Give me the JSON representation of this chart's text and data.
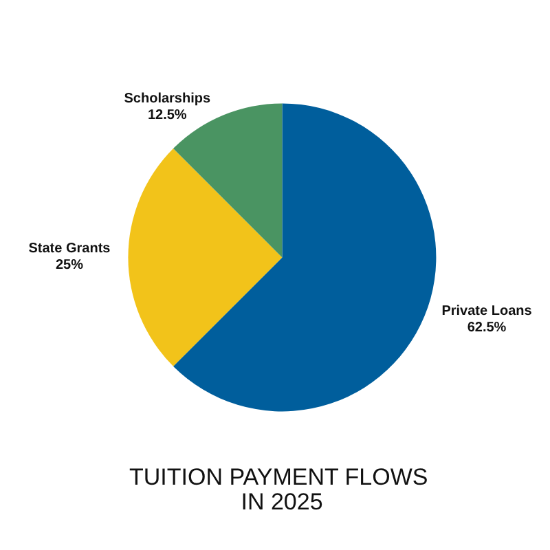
{
  "chart_data": {
    "type": "pie",
    "title": "TUITION PAYMENT FLOWS IN 2025",
    "categories": [
      "Private Loans",
      "State Grants",
      "Scholarships"
    ],
    "values": [
      62.5,
      25,
      12.5
    ],
    "value_labels": [
      "62.5%",
      "25%",
      "12.5%"
    ],
    "colors": [
      "#005e9c",
      "#f2c31a",
      "#4a9462"
    ]
  }
}
